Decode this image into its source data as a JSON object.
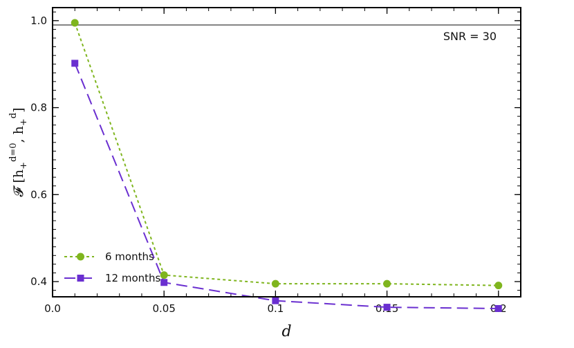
{
  "chart_data": {
    "type": "line",
    "title": "",
    "xlabel": "d",
    "ylabel": {
      "prefix": "𝓕 [h",
      "sub1": "+",
      "sup1": "d=0",
      "mid": ", h",
      "sub2": "+",
      "sup2": "d",
      "suffix": "]"
    },
    "x": [
      0.01,
      0.05,
      0.1,
      0.15,
      0.2
    ],
    "xlim": [
      0.0,
      0.21
    ],
    "ylim": [
      0.365,
      1.03
    ],
    "xticks": [
      0.0,
      0.05,
      0.1,
      0.15,
      0.2
    ],
    "xtick_labels": [
      "0.0",
      "0.05",
      "0.1",
      "0.15",
      "0.2"
    ],
    "yticks": [
      0.4,
      0.6,
      0.8,
      1.0
    ],
    "ytick_labels": [
      "0.4",
      "0.6",
      "0.8",
      "1.0"
    ],
    "hline": {
      "y": 0.99,
      "color": "#808080"
    },
    "annotation": "SNR = 30",
    "legend_position": "lower-left",
    "series": [
      {
        "name": "6 months",
        "values": [
          0.995,
          0.415,
          0.395,
          0.395,
          0.391
        ],
        "color": "#7fb51e",
        "marker": "circle",
        "dash": "dotted"
      },
      {
        "name": "12 months",
        "values": [
          0.902,
          0.398,
          0.356,
          0.341,
          0.338
        ],
        "color": "#6a2fd0",
        "marker": "square",
        "dash": "dashed"
      }
    ]
  }
}
